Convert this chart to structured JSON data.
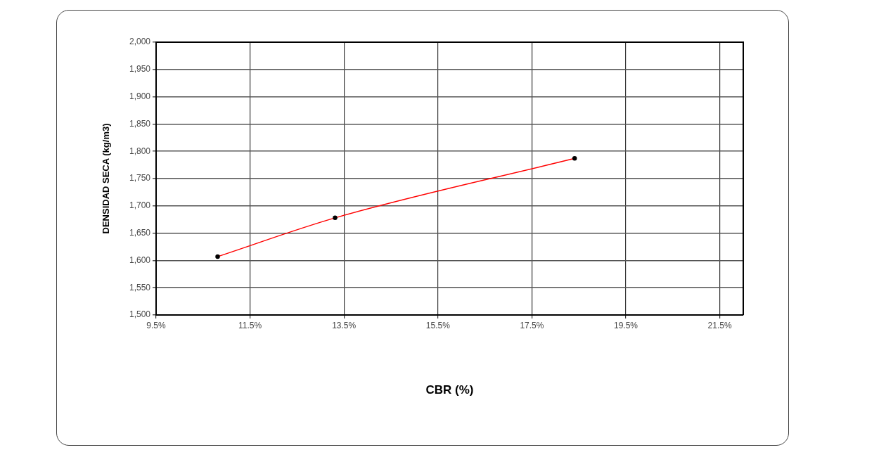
{
  "chart_data": {
    "type": "line",
    "xlabel": "CBR (%)",
    "ylabel": "DENSIDAD SECA (kg/m3)",
    "x": [
      10.81,
      13.31,
      18.41
    ],
    "series": [
      {
        "color": "#ff0000",
        "values": [
          1607,
          1678,
          1787
        ]
      }
    ],
    "xlim": [
      9.5,
      22
    ],
    "xticks": [
      {
        "value": 9.5,
        "label": "9.5%"
      },
      {
        "value": 11.5,
        "label": "11.5%"
      },
      {
        "value": 13.5,
        "label": "13.5%"
      },
      {
        "value": 15.5,
        "label": "15.5%"
      },
      {
        "value": 17.5,
        "label": "17.5%"
      },
      {
        "value": 19.5,
        "label": "19.5%"
      },
      {
        "value": 21.5,
        "label": "21.5%"
      }
    ],
    "ylim": [
      1500,
      2000
    ],
    "yticks": [
      {
        "value": 1500,
        "label": "1,500"
      },
      {
        "value": 1550,
        "label": "1,550"
      },
      {
        "value": 1600,
        "label": "1,600"
      },
      {
        "value": 1650,
        "label": "1,650"
      },
      {
        "value": 1700,
        "label": "1,700"
      },
      {
        "value": 1750,
        "label": "1,750"
      },
      {
        "value": 1800,
        "label": "1,800"
      },
      {
        "value": 1850,
        "label": "1,850"
      },
      {
        "value": 1900,
        "label": "1,900"
      },
      {
        "value": 1950,
        "label": "1,950"
      },
      {
        "value": 2000,
        "label": "2,000"
      }
    ],
    "grid": true,
    "marker": "circle",
    "line_style": "solid",
    "legend": false
  }
}
